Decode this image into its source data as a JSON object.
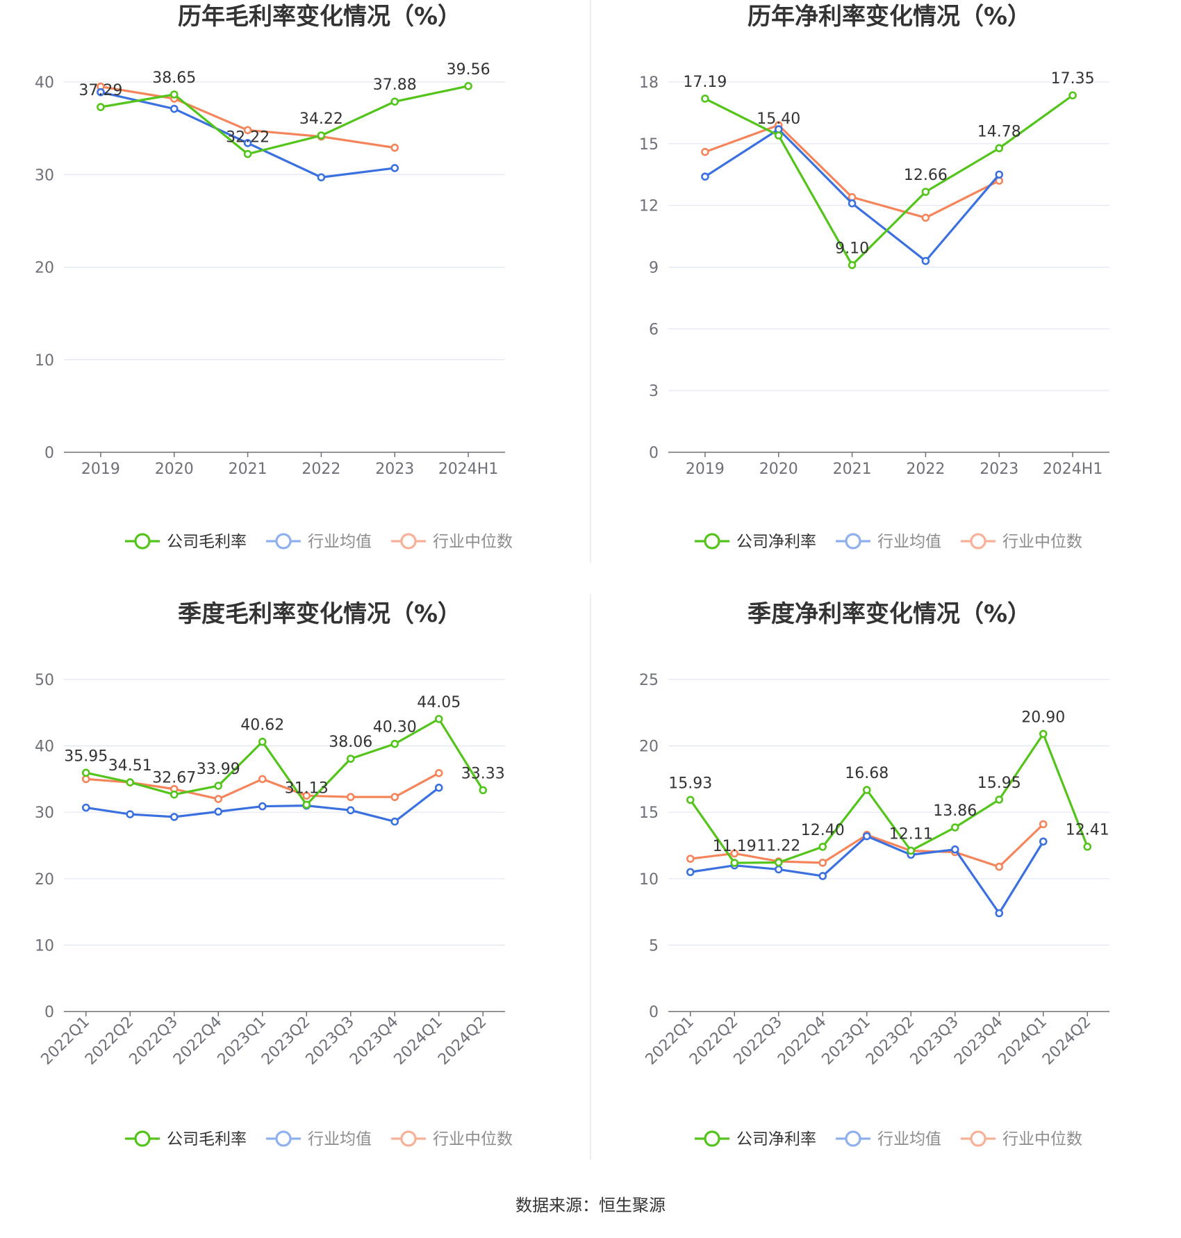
{
  "source": "数据来源：恒生聚源",
  "chart_data": [
    {
      "type": "line",
      "title": "历年毛利率变化情况（%）",
      "categories": [
        "2019",
        "2020",
        "2021",
        "2022",
        "2023",
        "2024H1"
      ],
      "ylim": [
        0,
        40
      ],
      "yticks": [
        0,
        10,
        20,
        30,
        40
      ],
      "grid": true,
      "legend": "bottom",
      "series": [
        {
          "name": "公司毛利率",
          "color": "#52c41a",
          "values": [
            37.29,
            38.65,
            32.22,
            34.22,
            37.88,
            39.56
          ],
          "labels": true
        },
        {
          "name": "行业均值",
          "color": "#3a70e0",
          "values": [
            38.9,
            37.1,
            33.4,
            29.7,
            30.7,
            null
          ],
          "labels": false
        },
        {
          "name": "行业中位数",
          "color": "#f5845a",
          "values": [
            39.5,
            38.2,
            34.8,
            34.1,
            32.9,
            null
          ],
          "labels": false
        }
      ]
    },
    {
      "type": "line",
      "title": "历年净利率变化情况（%）",
      "categories": [
        "2019",
        "2020",
        "2021",
        "2022",
        "2023",
        "2024H1"
      ],
      "ylim": [
        0,
        18
      ],
      "yticks": [
        0,
        3,
        6,
        9,
        12,
        15,
        18
      ],
      "grid": true,
      "legend": "bottom",
      "series": [
        {
          "name": "公司净利率",
          "color": "#52c41a",
          "values": [
            17.19,
            15.4,
            9.1,
            12.66,
            14.78,
            17.35
          ],
          "labels": true
        },
        {
          "name": "行业均值",
          "color": "#3a70e0",
          "values": [
            13.4,
            15.7,
            12.1,
            9.3,
            13.5,
            null
          ],
          "labels": false
        },
        {
          "name": "行业中位数",
          "color": "#f5845a",
          "values": [
            14.6,
            15.9,
            12.4,
            11.4,
            13.2,
            null
          ],
          "labels": false
        }
      ]
    },
    {
      "type": "line",
      "title": "季度毛利率变化情况（%）",
      "categories": [
        "2022Q1",
        "2022Q2",
        "2022Q3",
        "2022Q4",
        "2023Q1",
        "2023Q2",
        "2023Q3",
        "2023Q4",
        "2024Q1",
        "2024Q2"
      ],
      "ylim": [
        0,
        50
      ],
      "yticks": [
        0,
        10,
        20,
        30,
        40,
        50
      ],
      "grid": true,
      "legend": "bottom",
      "series": [
        {
          "name": "公司毛利率",
          "color": "#52c41a",
          "values": [
            35.95,
            34.51,
            32.67,
            33.99,
            40.62,
            31.13,
            38.06,
            40.3,
            44.05,
            33.33
          ],
          "labels": true
        },
        {
          "name": "行业均值",
          "color": "#3a70e0",
          "values": [
            30.7,
            29.7,
            29.3,
            30.1,
            30.9,
            31.0,
            30.3,
            28.6,
            33.7,
            null
          ],
          "labels": false
        },
        {
          "name": "行业中位数",
          "color": "#f5845a",
          "values": [
            35.0,
            34.5,
            33.5,
            32.0,
            35.0,
            32.5,
            32.3,
            32.3,
            35.9,
            null
          ],
          "labels": false
        }
      ]
    },
    {
      "type": "line",
      "title": "季度净利率变化情况（%）",
      "categories": [
        "2022Q1",
        "2022Q2",
        "2022Q3",
        "2022Q4",
        "2023Q1",
        "2023Q2",
        "2023Q3",
        "2023Q4",
        "2024Q1",
        "2024Q2"
      ],
      "ylim": [
        0,
        25
      ],
      "yticks": [
        0,
        5,
        10,
        15,
        20,
        25
      ],
      "grid": true,
      "legend": "bottom",
      "series": [
        {
          "name": "公司净利率",
          "color": "#52c41a",
          "values": [
            15.93,
            11.19,
            11.22,
            12.4,
            16.68,
            12.11,
            13.86,
            15.95,
            20.9,
            12.41
          ],
          "labels": true
        },
        {
          "name": "行业均值",
          "color": "#3a70e0",
          "values": [
            10.5,
            11.0,
            10.7,
            10.2,
            13.2,
            11.8,
            12.2,
            7.4,
            12.8,
            null
          ],
          "labels": false
        },
        {
          "name": "行业中位数",
          "color": "#f5845a",
          "values": [
            11.5,
            11.9,
            11.3,
            11.2,
            13.3,
            12.1,
            12.0,
            10.9,
            14.1,
            null
          ],
          "labels": false
        }
      ]
    }
  ]
}
